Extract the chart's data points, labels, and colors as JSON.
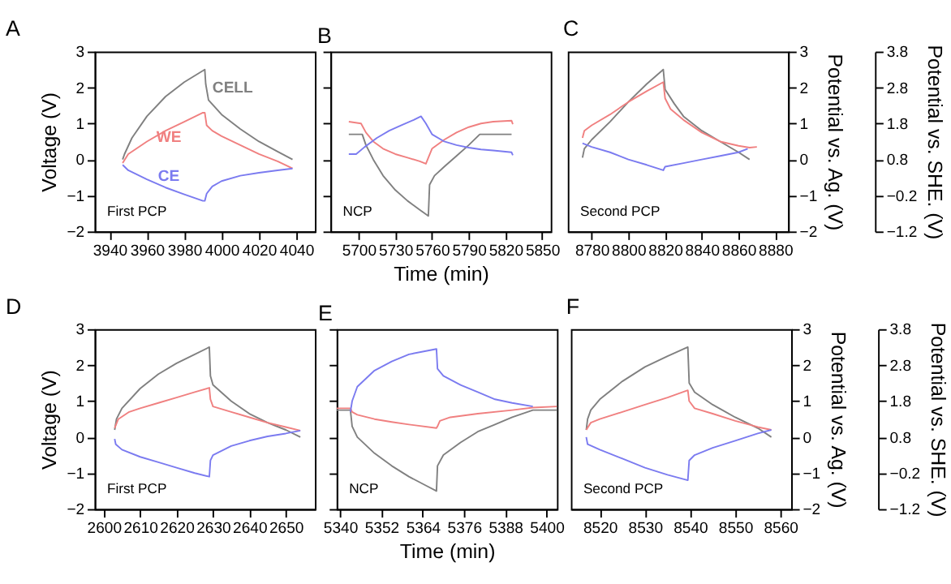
{
  "chart_data": [
    {
      "type": "line",
      "title": "A",
      "ylabel": "Voltage (V)",
      "annotations": [
        "First PCP"
      ],
      "xlim": [
        3932,
        4050
      ],
      "xticks": [
        3940,
        3960,
        3980,
        4000,
        4020,
        4040
      ],
      "ylim": [
        -2,
        3
      ],
      "yticks": [
        -2,
        -1,
        0,
        1,
        2,
        3
      ],
      "series": [
        {
          "name": "CELL",
          "color": "#808080",
          "x": [
            3947,
            3948,
            3952,
            3960,
            3970,
            3980,
            3991,
            3991.5,
            3993,
            4000,
            4010,
            4020,
            4030,
            4038
          ],
          "values": [
            0.0,
            0.15,
            0.6,
            1.2,
            1.75,
            2.15,
            2.5,
            2.1,
            1.65,
            1.25,
            0.85,
            0.5,
            0.22,
            0.0
          ]
        },
        {
          "name": "WE",
          "color": "#f08080",
          "x": [
            3947,
            3950,
            3960,
            3970,
            3980,
            3990,
            3991,
            3992,
            3995,
            4000,
            4010,
            4020,
            4030,
            4038
          ],
          "values": [
            -0.1,
            0.15,
            0.5,
            0.8,
            1.05,
            1.3,
            1.3,
            0.95,
            0.8,
            0.65,
            0.4,
            0.15,
            -0.05,
            -0.25
          ]
        },
        {
          "name": "CE",
          "color": "#7b7bf0",
          "x": [
            3947,
            3950,
            3960,
            3970,
            3980,
            3990,
            3991,
            3992,
            3995,
            4000,
            4010,
            4020,
            4030,
            4038
          ],
          "values": [
            -0.15,
            -0.3,
            -0.55,
            -0.78,
            -0.97,
            -1.15,
            -1.15,
            -0.95,
            -0.75,
            -0.6,
            -0.45,
            -0.37,
            -0.3,
            -0.25
          ]
        }
      ]
    },
    {
      "type": "line",
      "title": "B",
      "xlabel": "Time (min)",
      "annotations": [
        "NCP"
      ],
      "tick_labels": "x",
      "xlim": [
        5677,
        5857
      ],
      "xticks": [
        5700,
        5730,
        5760,
        5790,
        5820,
        5850
      ],
      "ylim": [
        -2,
        3
      ],
      "yticks": [
        -2,
        -1,
        0,
        1,
        2,
        3
      ],
      "series": [
        {
          "color": "#808080",
          "x": [
            5692,
            5703,
            5706,
            5712,
            5720,
            5730,
            5740,
            5750,
            5757,
            5758,
            5762,
            5770,
            5780,
            5790,
            5799,
            5825
          ],
          "values": [
            0.7,
            0.7,
            0.4,
            0.0,
            -0.45,
            -0.85,
            -1.15,
            -1.4,
            -1.57,
            -0.7,
            -0.45,
            -0.2,
            0.1,
            0.4,
            0.7,
            0.7
          ]
        },
        {
          "color": "#f08080",
          "x": [
            5692,
            5702,
            5706,
            5712,
            5720,
            5730,
            5740,
            5750,
            5755,
            5757,
            5760,
            5770,
            5780,
            5790,
            5800,
            5810,
            5825,
            5826
          ],
          "values": [
            1.05,
            1.0,
            0.75,
            0.5,
            0.3,
            0.15,
            0.05,
            -0.05,
            -0.12,
            0.05,
            0.3,
            0.55,
            0.75,
            0.9,
            1.0,
            1.05,
            1.08,
            0.98
          ]
        },
        {
          "color": "#7b7bf0",
          "x": [
            5692,
            5698,
            5705,
            5715,
            5725,
            5735,
            5745,
            5751,
            5755,
            5760,
            5770,
            5780,
            5790,
            5800,
            5810,
            5825,
            5826
          ],
          "values": [
            0.15,
            0.15,
            0.35,
            0.6,
            0.8,
            0.95,
            1.1,
            1.2,
            1.0,
            0.7,
            0.5,
            0.4,
            0.33,
            0.28,
            0.25,
            0.2,
            0.12
          ]
        }
      ]
    },
    {
      "type": "line",
      "title": "C",
      "annotations": [
        "Second PCP"
      ],
      "xlim": [
        8767,
        8887
      ],
      "xticks": [
        8780,
        8800,
        8820,
        8840,
        8860,
        8880
      ],
      "ylim": [
        -2,
        3
      ],
      "yticks": [
        -2,
        -1,
        0,
        1,
        2,
        3
      ],
      "ylabel": "Potential vs. Ag. (V)",
      "y3label": "Potential vs. SHE. (V)",
      "y3lim": [
        -1.2,
        3.8
      ],
      "y3ticks": [
        -1.2,
        -0.2,
        0.8,
        1.8,
        2.8,
        3.8
      ],
      "series": [
        {
          "color": "#808080",
          "x": [
            8775,
            8776,
            8780,
            8790,
            8800,
            8810,
            8819,
            8820,
            8825,
            8830,
            8840,
            8850,
            8860,
            8866
          ],
          "values": [
            0.05,
            0.3,
            0.55,
            1.05,
            1.6,
            2.1,
            2.5,
            1.95,
            1.55,
            1.2,
            0.8,
            0.5,
            0.2,
            0.0
          ]
        },
        {
          "color": "#f08080",
          "x": [
            8775,
            8776,
            8780,
            8790,
            8800,
            8810,
            8819,
            8820,
            8823,
            8830,
            8840,
            8850,
            8860,
            8866,
            8870
          ],
          "values": [
            0.6,
            0.8,
            0.95,
            1.25,
            1.6,
            1.9,
            2.15,
            1.7,
            1.4,
            1.1,
            0.75,
            0.5,
            0.38,
            0.33,
            0.35
          ]
        },
        {
          "color": "#7b7bf0",
          "x": [
            8775,
            8780,
            8790,
            8800,
            8810,
            8819,
            8820,
            8830,
            8840,
            8850,
            8860,
            8865
          ],
          "values": [
            0.45,
            0.35,
            0.2,
            0.0,
            -0.15,
            -0.3,
            -0.2,
            -0.1,
            0.0,
            0.1,
            0.2,
            0.3
          ]
        }
      ]
    },
    {
      "type": "line",
      "title": "D",
      "ylabel": "Voltage (V)",
      "annotations": [
        "First PCP"
      ],
      "xlim": [
        2597.5,
        2658
      ],
      "xticks": [
        2600,
        2610,
        2620,
        2630,
        2640,
        2650
      ],
      "ylim": [
        -2,
        3
      ],
      "yticks": [
        -2,
        -1,
        0,
        1,
        2,
        3
      ],
      "series": [
        {
          "color": "#808080",
          "x": [
            2603,
            2603.5,
            2605,
            2610,
            2615,
            2620,
            2625,
            2629,
            2629.3,
            2630,
            2635,
            2640,
            2645,
            2650,
            2654
          ],
          "values": [
            0.2,
            0.5,
            0.8,
            1.35,
            1.75,
            2.05,
            2.3,
            2.5,
            1.7,
            1.45,
            1.0,
            0.65,
            0.4,
            0.2,
            0.0
          ]
        },
        {
          "color": "#f08080",
          "x": [
            2603,
            2604,
            2607,
            2610,
            2615,
            2620,
            2625,
            2629,
            2629.3,
            2630,
            2635,
            2640,
            2645,
            2650,
            2654
          ],
          "values": [
            0.25,
            0.5,
            0.7,
            0.8,
            0.95,
            1.1,
            1.25,
            1.37,
            1.05,
            0.85,
            0.7,
            0.55,
            0.4,
            0.28,
            0.18
          ]
        },
        {
          "color": "#7b7bf0",
          "x": [
            2603,
            2603.3,
            2605,
            2610,
            2615,
            2620,
            2625,
            2629,
            2629.3,
            2630,
            2635,
            2640,
            2645,
            2650,
            2654
          ],
          "values": [
            -0.05,
            -0.2,
            -0.35,
            -0.55,
            -0.7,
            -0.85,
            -1.0,
            -1.1,
            -0.65,
            -0.5,
            -0.25,
            -0.1,
            0.02,
            0.1,
            0.18
          ]
        }
      ]
    },
    {
      "type": "line",
      "title": "E",
      "xlabel": "Time (min)",
      "annotations": [
        "NCP"
      ],
      "tick_labels": "x",
      "xlim": [
        5339,
        5403
      ],
      "xticks": [
        5340,
        5352,
        5364,
        5376,
        5388,
        5400
      ],
      "ylim": [
        -2,
        3
      ],
      "yticks": [
        -2,
        -1,
        0,
        1,
        2,
        3
      ],
      "series": [
        {
          "color": "#808080",
          "x": [
            5339,
            5343,
            5343.5,
            5345,
            5350,
            5355,
            5360,
            5365,
            5368,
            5368.3,
            5370,
            5375,
            5380,
            5385,
            5390,
            5396,
            5403
          ],
          "values": [
            0.75,
            0.75,
            0.3,
            0.0,
            -0.45,
            -0.8,
            -1.1,
            -1.35,
            -1.5,
            -0.8,
            -0.5,
            -0.15,
            0.15,
            0.35,
            0.55,
            0.75,
            0.75
          ]
        },
        {
          "color": "#f08080",
          "x": [
            5339,
            5343,
            5343.5,
            5345,
            5350,
            5355,
            5360,
            5368,
            5368.3,
            5369,
            5372,
            5380,
            5390,
            5396,
            5403
          ],
          "values": [
            0.8,
            0.8,
            0.7,
            0.62,
            0.5,
            0.42,
            0.35,
            0.25,
            0.3,
            0.45,
            0.55,
            0.65,
            0.75,
            0.82,
            0.85
          ]
        },
        {
          "color": "#7b7bf0",
          "x": [
            5343,
            5343.5,
            5345,
            5350,
            5355,
            5360,
            5368,
            5368.3,
            5370,
            5375,
            5380,
            5385,
            5390,
            5396
          ],
          "values": [
            0.7,
            1.0,
            1.4,
            1.85,
            2.1,
            2.3,
            2.45,
            1.9,
            1.7,
            1.45,
            1.25,
            1.05,
            0.95,
            0.85
          ]
        }
      ]
    },
    {
      "type": "line",
      "title": "F",
      "annotations": [
        "Second PCP"
      ],
      "xlim": [
        8513.6,
        8562.4
      ],
      "xticks": [
        8520,
        8530,
        8540,
        8550,
        8560
      ],
      "ylim": [
        -2,
        3
      ],
      "yticks": [
        -2,
        -1,
        0,
        1,
        2,
        3
      ],
      "ylabel": "Potential vs. Ag. (V)",
      "y3label": "Potential vs. SHE. (V)",
      "y3lim": [
        -1.2,
        3.8
      ],
      "y3ticks": [
        -1.2,
        -0.2,
        0.8,
        1.8,
        2.8,
        3.8
      ],
      "series": [
        {
          "color": "#808080",
          "x": [
            8517,
            8517.3,
            8518,
            8520,
            8525,
            8530,
            8535,
            8539.5,
            8539.8,
            8541,
            8545,
            8550,
            8555,
            8558
          ],
          "values": [
            0.2,
            0.5,
            0.75,
            1.05,
            1.55,
            1.95,
            2.25,
            2.5,
            1.5,
            1.25,
            0.9,
            0.55,
            0.25,
            0.0
          ]
        },
        {
          "color": "#f08080",
          "x": [
            8517,
            8518,
            8520,
            8525,
            8530,
            8535,
            8539.5,
            8539.8,
            8541,
            8545,
            8550,
            8555,
            8558
          ],
          "values": [
            0.2,
            0.4,
            0.5,
            0.7,
            0.9,
            1.1,
            1.3,
            1.0,
            0.8,
            0.65,
            0.45,
            0.28,
            0.2
          ]
        },
        {
          "color": "#7b7bf0",
          "x": [
            8517,
            8517.3,
            8520,
            8525,
            8530,
            8535,
            8539.5,
            8539.8,
            8541,
            8545,
            8550,
            8555,
            8558
          ],
          "values": [
            0.0,
            -0.2,
            -0.35,
            -0.6,
            -0.85,
            -1.05,
            -1.2,
            -0.65,
            -0.5,
            -0.3,
            -0.1,
            0.1,
            0.2
          ]
        }
      ]
    }
  ]
}
